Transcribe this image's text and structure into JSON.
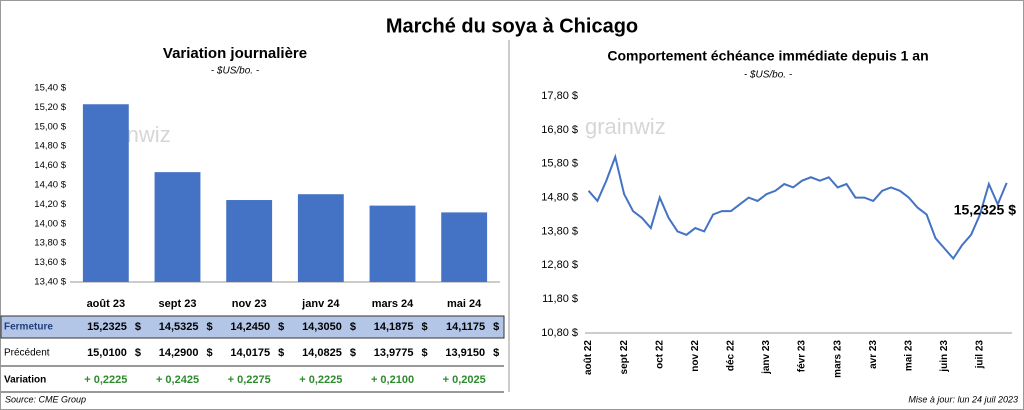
{
  "title": "Marché du soya à Chicago",
  "logo": "grainwiz",
  "source": "Source: CME Group",
  "updated": "Mise à jour: lun 24 juil 2023",
  "chart_data": [
    {
      "type": "bar",
      "title": "Variation journalière",
      "subtitle": "- $US/bo. -",
      "categories": [
        "août 23",
        "sept 23",
        "nov 23",
        "janv 24",
        "mars 24",
        "mai 24"
      ],
      "values": [
        15.2325,
        14.5325,
        14.245,
        14.305,
        14.1875,
        14.1175
      ],
      "value_labels": [
        "15,2325",
        "14,5325",
        "14,2450",
        "14,3050",
        "14,1875",
        "14,1175"
      ],
      "color": "#4472c4",
      "ylim": [
        13.4,
        15.4
      ],
      "yticks": [
        {
          "value": 13.4,
          "label": "13,40 $"
        },
        {
          "value": 13.6,
          "label": "13,60 $"
        },
        {
          "value": 13.8,
          "label": "13,80 $"
        },
        {
          "value": 14.0,
          "label": "14,00 $"
        },
        {
          "value": 14.2,
          "label": "14,20 $"
        },
        {
          "value": 14.4,
          "label": "14,40 $"
        },
        {
          "value": 14.6,
          "label": "14,60 $"
        },
        {
          "value": 14.8,
          "label": "14,80 $"
        },
        {
          "value": 15.0,
          "label": "15,00 $"
        },
        {
          "value": 15.2,
          "label": "15,20 $"
        },
        {
          "value": 15.4,
          "label": "15,40 $"
        }
      ],
      "unit": "$",
      "table_rows": [
        {
          "name": "Fermeture"
        },
        {
          "name": "Précédent",
          "values": [
            15.01,
            14.29,
            14.0175,
            14.0825,
            13.9775,
            13.915
          ],
          "value_labels": [
            "15,0100",
            "14,2900",
            "14,0175",
            "14,0825",
            "13,9775",
            "13,9150"
          ]
        },
        {
          "name": "Variation",
          "color": "#2e8b2e",
          "values": [
            0.2225,
            0.2425,
            0.2275,
            0.2225,
            0.21,
            0.2025
          ],
          "value_labels": [
            "+ 0,2225",
            "+ 0,2425",
            "+ 0,2275",
            "+ 0,2225",
            "+ 0,2100",
            "+ 0,2025"
          ]
        }
      ]
    },
    {
      "type": "line",
      "title": "Comportement  échéance immédiate depuis 1 an",
      "subtitle": "- $US/bo. -",
      "color": "#4472c4",
      "x": [
        0,
        0.25,
        0.5,
        0.75,
        1,
        1.25,
        1.5,
        1.75,
        2,
        2.25,
        2.5,
        2.75,
        3,
        3.25,
        3.5,
        3.75,
        4,
        4.25,
        4.5,
        4.75,
        5,
        5.25,
        5.5,
        5.75,
        6,
        6.25,
        6.5,
        6.75,
        7,
        7.25,
        7.5,
        7.75,
        8,
        8.25,
        8.5,
        8.75,
        9,
        9.25,
        9.5,
        9.75,
        10,
        10.25,
        10.5,
        10.75,
        11,
        11.25,
        11.5,
        11.75
      ],
      "values": [
        15.0,
        14.7,
        15.3,
        16.0,
        14.9,
        14.4,
        14.2,
        13.9,
        14.8,
        14.2,
        13.8,
        13.7,
        13.9,
        13.8,
        14.3,
        14.4,
        14.4,
        14.6,
        14.8,
        14.7,
        14.9,
        15.0,
        15.2,
        15.1,
        15.3,
        15.4,
        15.3,
        15.4,
        15.1,
        15.2,
        14.8,
        14.8,
        14.7,
        15.0,
        15.1,
        15.0,
        14.8,
        14.5,
        14.3,
        13.6,
        13.3,
        13.0,
        13.4,
        13.7,
        14.3,
        15.2,
        14.6,
        15.2325
      ],
      "annotation": "15,2325 $",
      "xlim": [
        -0.1,
        11.9
      ],
      "xticks": [
        {
          "value": 0,
          "label": "août 22"
        },
        {
          "value": 1,
          "label": "sept 22"
        },
        {
          "value": 2,
          "label": "oct 22"
        },
        {
          "value": 3,
          "label": "nov 22"
        },
        {
          "value": 4,
          "label": "déc 22"
        },
        {
          "value": 5,
          "label": "janv 23"
        },
        {
          "value": 6,
          "label": "févr 23"
        },
        {
          "value": 7,
          "label": "mars 23"
        },
        {
          "value": 8,
          "label": "avr 23"
        },
        {
          "value": 9,
          "label": "mai 23"
        },
        {
          "value": 10,
          "label": "juin 23"
        },
        {
          "value": 11,
          "label": "juil 23"
        }
      ],
      "ylim": [
        10.8,
        17.8
      ],
      "yticks": [
        {
          "value": 10.8,
          "label": "10,80 $"
        },
        {
          "value": 11.8,
          "label": "11,80 $"
        },
        {
          "value": 12.8,
          "label": "12,80 $"
        },
        {
          "value": 13.8,
          "label": "13,80 $"
        },
        {
          "value": 14.8,
          "label": "14,80 $"
        },
        {
          "value": 15.8,
          "label": "15,80 $"
        },
        {
          "value": 16.8,
          "label": "16,80 $"
        },
        {
          "value": 17.8,
          "label": "17,80 $"
        }
      ]
    }
  ]
}
